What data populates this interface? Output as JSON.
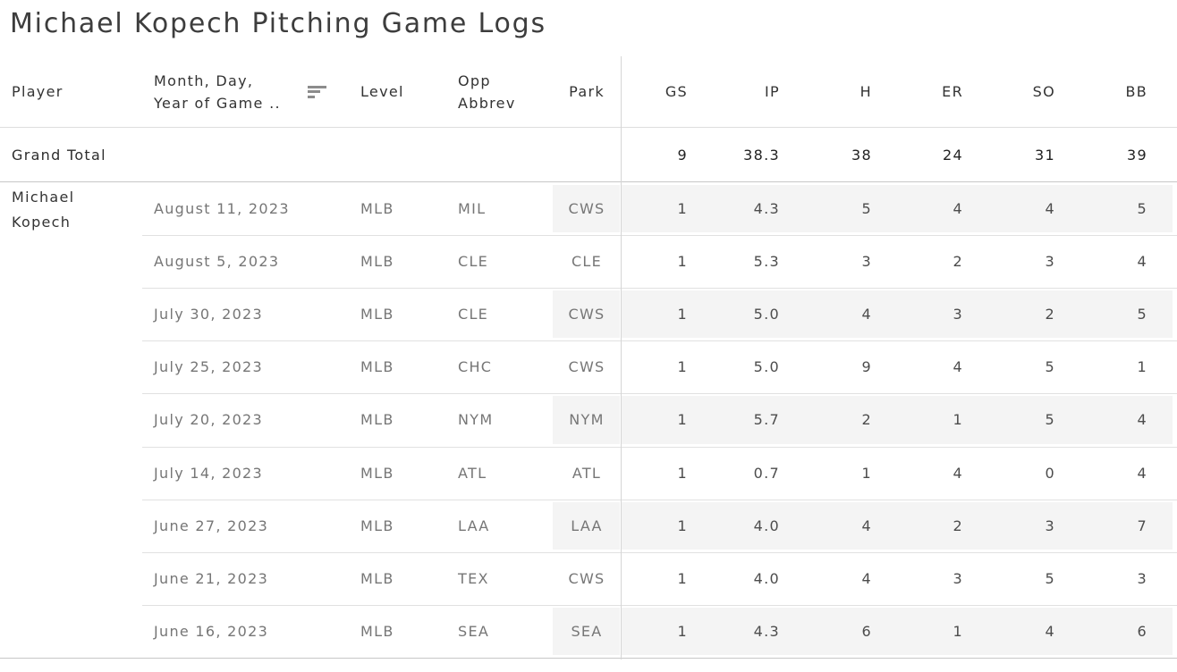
{
  "title": "Michael Kopech Pitching Game Logs",
  "columns": {
    "player": "Player",
    "date_header_line1": "Month, Day,",
    "date_header_line2": "Year of Game ..",
    "date_sort_icon": "sort-descending",
    "level": "Level",
    "opp_line1": "Opp",
    "opp_line2": "Abbrev",
    "park": "Park",
    "measures": [
      "GS",
      "IP",
      "H",
      "ER",
      "SO",
      "BB"
    ]
  },
  "grand_total": {
    "label": "Grand Total",
    "values": [
      "9",
      "38.3",
      "38",
      "24",
      "31",
      "39"
    ]
  },
  "group": {
    "player_name": "Michael Kopech"
  },
  "rows": [
    {
      "date": "August 11, 2023",
      "level": "MLB",
      "opp": "MIL",
      "park": "CWS",
      "values": [
        "1",
        "4.3",
        "5",
        "4",
        "4",
        "5"
      ]
    },
    {
      "date": "August 5, 2023",
      "level": "MLB",
      "opp": "CLE",
      "park": "CLE",
      "values": [
        "1",
        "5.3",
        "3",
        "2",
        "3",
        "4"
      ]
    },
    {
      "date": "July 30, 2023",
      "level": "MLB",
      "opp": "CLE",
      "park": "CWS",
      "values": [
        "1",
        "5.0",
        "4",
        "3",
        "2",
        "5"
      ]
    },
    {
      "date": "July 25, 2023",
      "level": "MLB",
      "opp": "CHC",
      "park": "CWS",
      "values": [
        "1",
        "5.0",
        "9",
        "4",
        "5",
        "1"
      ]
    },
    {
      "date": "July 20, 2023",
      "level": "MLB",
      "opp": "NYM",
      "park": "NYM",
      "values": [
        "1",
        "5.7",
        "2",
        "1",
        "5",
        "4"
      ]
    },
    {
      "date": "July 14, 2023",
      "level": "MLB",
      "opp": "ATL",
      "park": "ATL",
      "values": [
        "1",
        "0.7",
        "1",
        "4",
        "0",
        "4"
      ]
    },
    {
      "date": "June 27, 2023",
      "level": "MLB",
      "opp": "LAA",
      "park": "LAA",
      "values": [
        "1",
        "4.0",
        "4",
        "2",
        "3",
        "7"
      ]
    },
    {
      "date": "June 21, 2023",
      "level": "MLB",
      "opp": "TEX",
      "park": "CWS",
      "values": [
        "1",
        "4.0",
        "4",
        "3",
        "5",
        "3"
      ]
    },
    {
      "date": "June 16, 2023",
      "level": "MLB",
      "opp": "SEA",
      "park": "SEA",
      "values": [
        "1",
        "4.3",
        "6",
        "1",
        "4",
        "6"
      ]
    }
  ],
  "colors": {
    "row_band": "#f4f4f4",
    "pane_divider": "#d6d6d6",
    "group_border": "#c6c6c6",
    "row_border": "#e1e1e1",
    "dimension_text": "#767676",
    "measure_text": "#4c4c4c",
    "header_text": "#333333"
  }
}
